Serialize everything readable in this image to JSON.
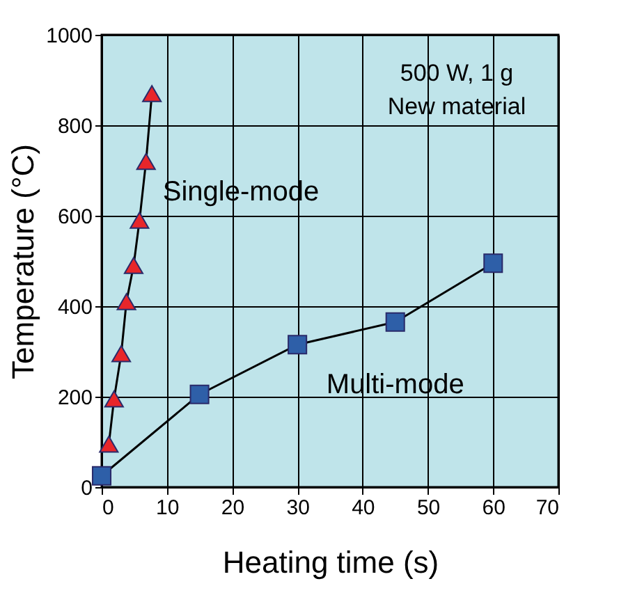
{
  "chart_data": {
    "type": "line",
    "xlabel": "Heating time (s)",
    "ylabel": "Temperature (°C)",
    "annotations": [
      "500 W, 1 g",
      "New material"
    ],
    "xlim": [
      0,
      70
    ],
    "xticks": [
      0,
      10,
      20,
      30,
      40,
      50,
      60,
      70
    ],
    "ylim": [
      0,
      1000
    ],
    "yticks": [
      0,
      200,
      400,
      600,
      800,
      1000
    ],
    "grid": true,
    "series": [
      {
        "name": "Single-mode",
        "color": "#e8262a",
        "marker": "triangle",
        "x": [
          1.1,
          1.9,
          3.0,
          3.8,
          4.9,
          5.8,
          6.8,
          7.7
        ],
        "values": [
          95,
          195,
          295,
          410,
          490,
          590,
          720,
          870
        ]
      },
      {
        "name": "Multi-mode",
        "color": "#2e5fa8",
        "marker": "square",
        "x": [
          0,
          15,
          30,
          45,
          60
        ],
        "values": [
          25,
          205,
          315,
          365,
          495
        ]
      }
    ]
  }
}
